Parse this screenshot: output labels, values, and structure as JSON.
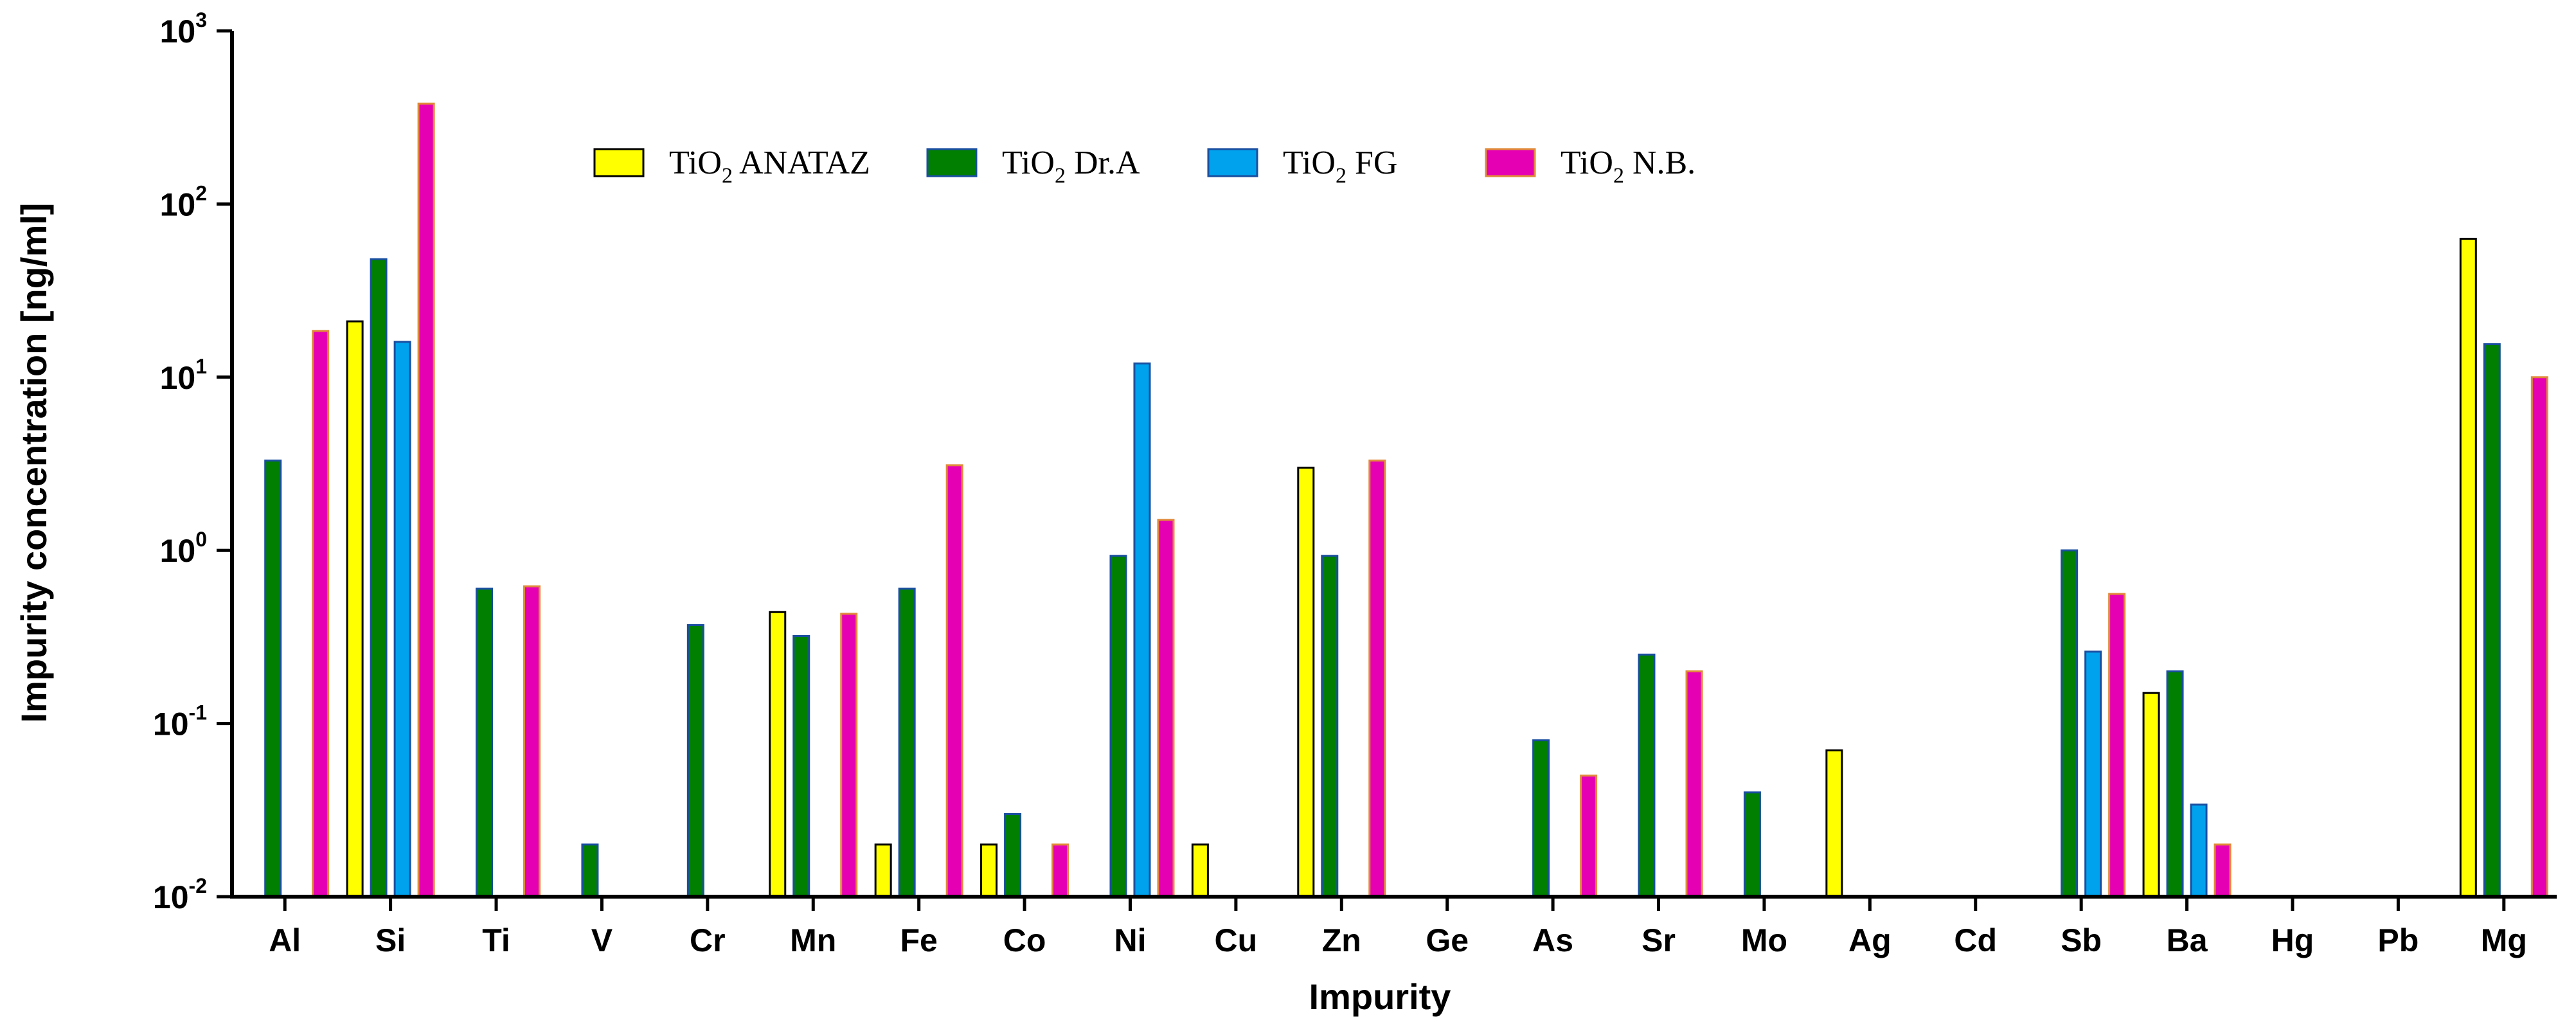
{
  "chart_data": {
    "type": "bar",
    "xlabel": "Impurity",
    "ylabel": "Impurity concentration [ng/ml]",
    "yscale": "log",
    "ylim": [
      0.01,
      1000
    ],
    "yticks": [
      {
        "base": "10",
        "exp": "-2"
      },
      {
        "base": "10",
        "exp": "-1"
      },
      {
        "base": "10",
        "exp": "0"
      },
      {
        "base": "10",
        "exp": "1"
      },
      {
        "base": "10",
        "exp": "2"
      },
      {
        "base": "10",
        "exp": "3"
      }
    ],
    "legend_position": "top-center",
    "categories": [
      "Al",
      "Si",
      "Ti",
      "V",
      "Cr",
      "Mn",
      "Fe",
      "Co",
      "Ni",
      "Cu",
      "Zn",
      "Ge",
      "As",
      "Sr",
      "Mo",
      "Ag",
      "Cd",
      "Sb",
      "Ba",
      "Hg",
      "Pb",
      "Mg"
    ],
    "series": [
      {
        "name": "TiO2 ANATAZ",
        "label_main": "TiO",
        "label_sub": "2",
        "label_rest": " ANATAZ",
        "fill": "#ffff00",
        "stroke": "#000000",
        "values": [
          null,
          21,
          null,
          null,
          null,
          0.44,
          0.02,
          0.02,
          null,
          0.02,
          3.0,
          null,
          null,
          null,
          null,
          0.07,
          null,
          null,
          0.15,
          null,
          null,
          63
        ]
      },
      {
        "name": "TiO2 Dr.A",
        "label_main": "TiO",
        "label_sub": "2",
        "label_rest": " Dr.A",
        "fill": "#007f00",
        "stroke": "#1a4fa0",
        "values": [
          3.3,
          48,
          0.6,
          0.02,
          0.37,
          0.32,
          0.6,
          0.03,
          0.93,
          null,
          0.93,
          null,
          0.08,
          0.25,
          0.04,
          null,
          null,
          1.0,
          0.2,
          null,
          null,
          15.5
        ]
      },
      {
        "name": "TiO2 FG",
        "label_main": "TiO",
        "label_sub": "2",
        "label_rest": " FG",
        "fill": "#00a2ed",
        "stroke": "#1a4fa0",
        "values": [
          null,
          16,
          null,
          null,
          null,
          null,
          null,
          null,
          12,
          null,
          null,
          null,
          null,
          null,
          null,
          null,
          null,
          0.26,
          0.034,
          null,
          null,
          null
        ]
      },
      {
        "name": "TiO2 N.B.",
        "label_main": "TiO",
        "label_sub": "2",
        "label_rest": " N.B.",
        "fill": "#e600b4",
        "stroke": "#e08a3a",
        "values": [
          18.5,
          380,
          0.62,
          null,
          null,
          0.43,
          3.1,
          0.02,
          1.5,
          null,
          3.3,
          null,
          0.05,
          0.2,
          null,
          null,
          null,
          0.56,
          0.02,
          null,
          null,
          10
        ]
      }
    ]
  }
}
